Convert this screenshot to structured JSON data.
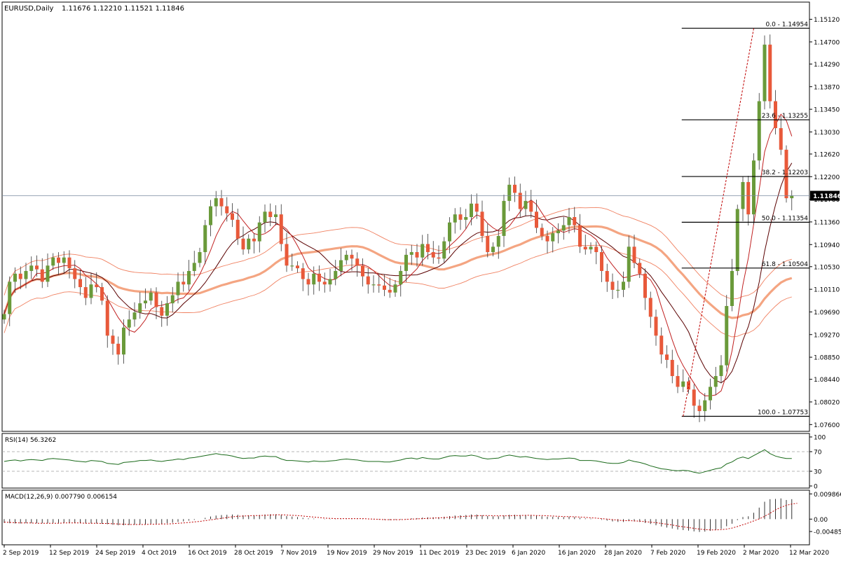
{
  "chart_data": [
    {
      "type": "candlestick",
      "panel": "price",
      "symbol_label": "EURUSD,Daily",
      "ohlc_label": "1.11676 1.12210 1.11521 1.11846",
      "last_price": "1.11846",
      "y_range": [
        1.075,
        1.154
      ],
      "y_ticks": [
        "1.15120",
        "1.14700",
        "1.14290",
        "1.13870",
        "1.13450",
        "1.13030",
        "1.12620",
        "1.12200",
        "1.11780",
        "1.11360",
        "1.10940",
        "1.10530",
        "1.10110",
        "1.09690",
        "1.09270",
        "1.08850",
        "1.08440",
        "1.08020",
        "1.07600"
      ],
      "x_ticks": [
        "2 Sep 2019",
        "12 Sep 2019",
        "24 Sep 2019",
        "4 Oct 2019",
        "16 Oct 2019",
        "28 Oct 2019",
        "7 Nov 2019",
        "19 Nov 2019",
        "29 Nov 2019",
        "11 Dec 2019",
        "23 Dec 2019",
        "6 Jan 2020",
        "16 Jan 2020",
        "28 Jan 2020",
        "7 Feb 2020",
        "19 Feb 2020",
        "2 Mar 2020",
        "12 Mar 2020"
      ],
      "fib_levels": [
        {
          "label": "0.0 - 1.14954",
          "value": 1.14954
        },
        {
          "label": "23.6 - 1.13255",
          "value": 1.13255
        },
        {
          "label": "38.2 - 1.12203",
          "value": 1.12203
        },
        {
          "label": "50.0 - 1.11354",
          "value": 1.11354
        },
        {
          "label": "61.8 - 1.10504",
          "value": 1.10504
        },
        {
          "label": "100.0 - 1.07753",
          "value": 1.07753
        }
      ],
      "colors": {
        "bull": "#6a9a3a",
        "bear": "#e8593a",
        "ma_thick": "#f4a582",
        "ma_thin": "#f08060",
        "ma_dark": "#5a0000",
        "ma_red": "#c02020"
      },
      "close": [
        1.0965,
        1.1025,
        1.104,
        1.103,
        1.1045,
        1.1055,
        1.1048,
        1.1025,
        1.1055,
        1.107,
        1.106,
        1.107,
        1.105,
        1.103,
        1.1015,
        1.0995,
        1.102,
        1.1015,
        1.099,
        1.0925,
        1.091,
        1.089,
        1.094,
        1.0955,
        1.0968,
        1.0985,
        1.099,
        1.1005,
        1.0978,
        1.0962,
        1.0985,
        1.1,
        1.1025,
        1.102,
        1.1045,
        1.106,
        1.108,
        1.113,
        1.1165,
        1.118,
        1.1165,
        1.1152,
        1.114,
        1.1105,
        1.1085,
        1.1105,
        1.11,
        1.1135,
        1.1155,
        1.1145,
        1.115,
        1.1095,
        1.1055,
        1.1055,
        1.105,
        1.103,
        1.102,
        1.104,
        1.1025,
        1.102,
        1.103,
        1.1045,
        1.1065,
        1.1075,
        1.1068,
        1.1055,
        1.1035,
        1.102,
        1.102,
        1.1018,
        1.101,
        1.1005,
        1.102,
        1.1045,
        1.1075,
        1.108,
        1.107,
        1.1095,
        1.108,
        1.107,
        1.1068,
        1.11,
        1.1135,
        1.115,
        1.114,
        1.1145,
        1.117,
        1.1155,
        1.111,
        1.108,
        1.109,
        1.111,
        1.1175,
        1.1205,
        1.119,
        1.116,
        1.1175,
        1.1155,
        1.1125,
        1.111,
        1.11,
        1.1115,
        1.112,
        1.113,
        1.1145,
        1.113,
        1.109,
        1.1085,
        1.109,
        1.108,
        1.1045,
        1.1025,
        1.101,
        1.101,
        1.1025,
        1.109,
        1.106,
        1.104,
        1.0995,
        1.096,
        1.0925,
        1.089,
        1.088,
        1.085,
        1.083,
        1.084,
        1.0825,
        1.0795,
        1.0785,
        1.0805,
        1.083,
        1.085,
        1.087,
        1.098,
        1.1045,
        1.116,
        1.121,
        1.115,
        1.125,
        1.136,
        1.1465,
        1.136,
        1.131,
        1.127,
        1.118,
        1.1185
      ]
    },
    {
      "type": "line",
      "panel": "rsi",
      "label": "RSI(14) 56.3262",
      "y_range": [
        0,
        100
      ],
      "y_ticks": [
        "100",
        "70",
        "30",
        "0"
      ],
      "levels": [
        70,
        30
      ],
      "values": [
        50,
        52,
        53,
        51,
        53,
        54,
        53,
        52,
        55,
        56,
        55,
        54,
        53,
        51,
        50,
        49,
        52,
        51,
        50,
        46,
        45,
        44,
        48,
        49,
        50,
        52,
        52,
        53,
        51,
        50,
        52,
        53,
        55,
        54,
        57,
        58,
        60,
        62,
        64,
        66,
        64,
        63,
        61,
        58,
        56,
        57,
        57,
        60,
        61,
        60,
        60,
        55,
        52,
        52,
        51,
        50,
        49,
        51,
        50,
        50,
        51,
        52,
        54,
        55,
        54,
        53,
        51,
        50,
        50,
        50,
        49,
        49,
        51,
        53,
        56,
        57,
        55,
        58,
        56,
        55,
        55,
        58,
        61,
        62,
        61,
        61,
        63,
        61,
        57,
        55,
        56,
        57,
        61,
        63,
        61,
        59,
        60,
        58,
        56,
        55,
        54,
        55,
        55,
        56,
        57,
        56,
        52,
        52,
        52,
        51,
        49,
        47,
        46,
        46,
        48,
        53,
        50,
        48,
        45,
        41,
        38,
        35,
        34,
        32,
        31,
        32,
        31,
        28,
        26,
        29,
        32,
        35,
        37,
        45,
        49,
        56,
        59,
        56,
        62,
        68,
        74,
        66,
        61,
        58,
        56,
        56
      ]
    },
    {
      "type": "histogram+line",
      "panel": "macd",
      "label": "MACD(12,26,9) 0.007790 0.006154",
      "y_range": [
        -0.0095,
        0.0105
      ],
      "y_ticks": [
        "0.009866",
        "0.00",
        "-0.00485"
      ],
      "histogram": [
        -0.0015,
        -0.0016,
        -0.0017,
        -0.0017,
        -0.0016,
        -0.0016,
        -0.0016,
        -0.0016,
        -0.0016,
        -0.0015,
        -0.0015,
        -0.0014,
        -0.0014,
        -0.0015,
        -0.0016,
        -0.0017,
        -0.0017,
        -0.0017,
        -0.0018,
        -0.002,
        -0.0022,
        -0.0024,
        -0.0024,
        -0.0023,
        -0.0022,
        -0.0021,
        -0.002,
        -0.0018,
        -0.0018,
        -0.0018,
        -0.0016,
        -0.0014,
        -0.0011,
        -0.0009,
        -0.0006,
        -0.0003,
        0.0,
        0.0005,
        0.001,
        0.0014,
        0.0016,
        0.0017,
        0.0018,
        0.0017,
        0.0015,
        0.0015,
        0.0014,
        0.0016,
        0.0018,
        0.0019,
        0.0019,
        0.0016,
        0.0012,
        0.001,
        0.0008,
        0.0005,
        0.0003,
        0.0002,
        0.0,
        -0.0001,
        -0.0001,
        -0.0001,
        0.0001,
        0.0002,
        0.0003,
        0.0003,
        0.0002,
        0.0,
        -0.0001,
        -0.0002,
        -0.0003,
        -0.0004,
        -0.0003,
        -0.0002,
        0.0001,
        0.0003,
        0.0004,
        0.0006,
        0.0007,
        0.0007,
        0.0007,
        0.0009,
        0.0012,
        0.0014,
        0.0015,
        0.0016,
        0.0018,
        0.0018,
        0.0015,
        0.0012,
        0.0011,
        0.0011,
        0.0014,
        0.0017,
        0.0017,
        0.0016,
        0.0016,
        0.0015,
        0.0013,
        0.0011,
        0.0009,
        0.0009,
        0.0008,
        0.0008,
        0.0009,
        0.0008,
        0.0005,
        0.0003,
        0.0002,
        0.0,
        -0.0003,
        -0.0006,
        -0.0009,
        -0.0011,
        -0.0011,
        -0.0008,
        -0.0009,
        -0.0011,
        -0.0015,
        -0.0019,
        -0.0024,
        -0.0029,
        -0.0033,
        -0.0037,
        -0.0041,
        -0.0043,
        -0.0045,
        -0.0048,
        -0.005,
        -0.0049,
        -0.0046,
        -0.0042,
        -0.0038,
        -0.0028,
        -0.0018,
        -0.0004,
        0.0008,
        0.0011,
        0.0025,
        0.0045,
        0.0068,
        0.0078,
        0.0079,
        0.0081,
        0.0075,
        0.0078
      ],
      "signal": [
        -0.0012,
        -0.0013,
        -0.0014,
        -0.0015,
        -0.0015,
        -0.0015,
        -0.0016,
        -0.0016,
        -0.0016,
        -0.0016,
        -0.0016,
        -0.0015,
        -0.0015,
        -0.0015,
        -0.0015,
        -0.0016,
        -0.0016,
        -0.0016,
        -0.0017,
        -0.0017,
        -0.0018,
        -0.0019,
        -0.002,
        -0.0021,
        -0.0021,
        -0.0021,
        -0.0021,
        -0.002,
        -0.002,
        -0.0019,
        -0.0019,
        -0.0018,
        -0.0016,
        -0.0015,
        -0.0013,
        -0.0011,
        -0.0009,
        -0.0006,
        -0.0003,
        0.0,
        0.0003,
        0.0006,
        0.0009,
        0.0011,
        0.0012,
        0.0013,
        0.0014,
        0.0014,
        0.0015,
        0.0016,
        0.0017,
        0.0017,
        0.0016,
        0.0015,
        0.0014,
        0.0012,
        0.001,
        0.0008,
        0.0006,
        0.0004,
        0.0003,
        0.0002,
        0.0002,
        0.0002,
        0.0002,
        0.0002,
        0.0002,
        0.0001,
        0.0,
        -0.0001,
        -0.0002,
        -0.0002,
        -0.0002,
        -0.0002,
        -0.0001,
        0.0,
        0.0001,
        0.0002,
        0.0003,
        0.0004,
        0.0005,
        0.0006,
        0.0007,
        0.0008,
        0.001,
        0.0011,
        0.0012,
        0.0013,
        0.0014,
        0.0014,
        0.0013,
        0.0013,
        0.0013,
        0.0013,
        0.0014,
        0.0014,
        0.0015,
        0.0015,
        0.0014,
        0.0014,
        0.0013,
        0.0012,
        0.0011,
        0.001,
        0.001,
        0.0009,
        0.0008,
        0.0007,
        0.0005,
        0.0004,
        0.0002,
        0.0,
        -0.0002,
        -0.0004,
        -0.0006,
        -0.0006,
        -0.0007,
        -0.0008,
        -0.001,
        -0.0012,
        -0.0014,
        -0.0017,
        -0.002,
        -0.0023,
        -0.0027,
        -0.003,
        -0.0033,
        -0.0036,
        -0.0039,
        -0.0041,
        -0.0042,
        -0.0042,
        -0.0041,
        -0.0039,
        -0.0035,
        -0.0029,
        -0.0022,
        -0.0015,
        -0.0007,
        0.0001,
        0.0011,
        0.0023,
        0.0036,
        0.0046,
        0.0054,
        0.0059,
        0.0062
      ]
    }
  ]
}
